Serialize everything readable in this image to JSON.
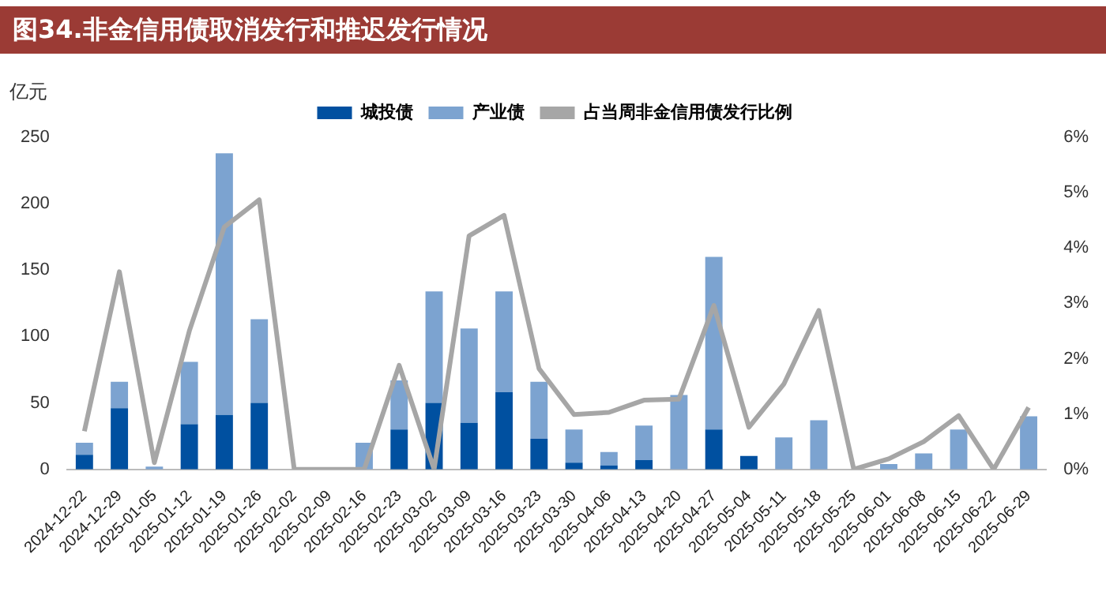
{
  "chart_data": {
    "type": "bar",
    "title": "图34.非金信用债取消发行和推迟发行情况",
    "ylabel": "亿元",
    "categories": [
      "2024-12-22",
      "2024-12-29",
      "2025-01-05",
      "2025-01-12",
      "2025-01-19",
      "2025-01-26",
      "2025-02-02",
      "2025-02-09",
      "2025-02-16",
      "2025-02-23",
      "2025-03-02",
      "2025-03-09",
      "2025-03-16",
      "2025-03-23",
      "2025-03-30",
      "2025-04-06",
      "2025-04-13",
      "2025-04-20",
      "2025-04-27",
      "2025-05-04",
      "2025-05-11",
      "2025-05-18",
      "2025-05-25",
      "2025-06-01",
      "2025-06-08",
      "2025-06-15",
      "2025-06-22",
      "2025-06-29"
    ],
    "stacked": true,
    "legend": "top",
    "marker": "none",
    "ylim": [
      0,
      250
    ],
    "yticks": [
      0,
      50,
      100,
      150,
      200,
      250
    ],
    "y2lim": [
      0,
      6
    ],
    "y2ticks": [
      {
        "value": 0,
        "label": "0%"
      },
      {
        "value": 1,
        "label": "1%"
      },
      {
        "value": 2,
        "label": "2%"
      },
      {
        "value": 3,
        "label": "3%"
      },
      {
        "value": 4,
        "label": "4%"
      },
      {
        "value": 5,
        "label": "5%"
      },
      {
        "value": 6,
        "label": "6%"
      }
    ],
    "series": [
      {
        "name": "城投债",
        "color": "#0050a0",
        "values": [
          11,
          46,
          0,
          34,
          41,
          50,
          0,
          0,
          0,
          30,
          50,
          35,
          58,
          23,
          5,
          3,
          7,
          0,
          30,
          10,
          0,
          0,
          0,
          0,
          0,
          0,
          0,
          0
        ]
      },
      {
        "name": "产业债",
        "color": "#7ca3d0",
        "values": [
          9,
          20,
          2,
          47,
          197,
          63,
          0,
          0,
          20,
          37,
          84,
          71,
          76,
          43,
          25,
          10,
          26,
          56,
          130,
          0,
          24,
          37,
          0,
          4,
          12,
          30,
          0,
          40
        ]
      },
      {
        "name": "占当周非金信用债发行比例",
        "type": "line",
        "axis": "y2",
        "color": "#a6a6a6",
        "values": [
          0.69,
          3.57,
          0.12,
          2.5,
          4.38,
          4.87,
          0,
          0,
          0,
          1.88,
          0,
          4.22,
          4.59,
          1.82,
          0.99,
          1.03,
          1.25,
          1.27,
          2.96,
          0.76,
          1.54,
          2.87,
          0,
          0.19,
          0.5,
          0.97,
          0,
          1.12
        ]
      }
    ]
  }
}
